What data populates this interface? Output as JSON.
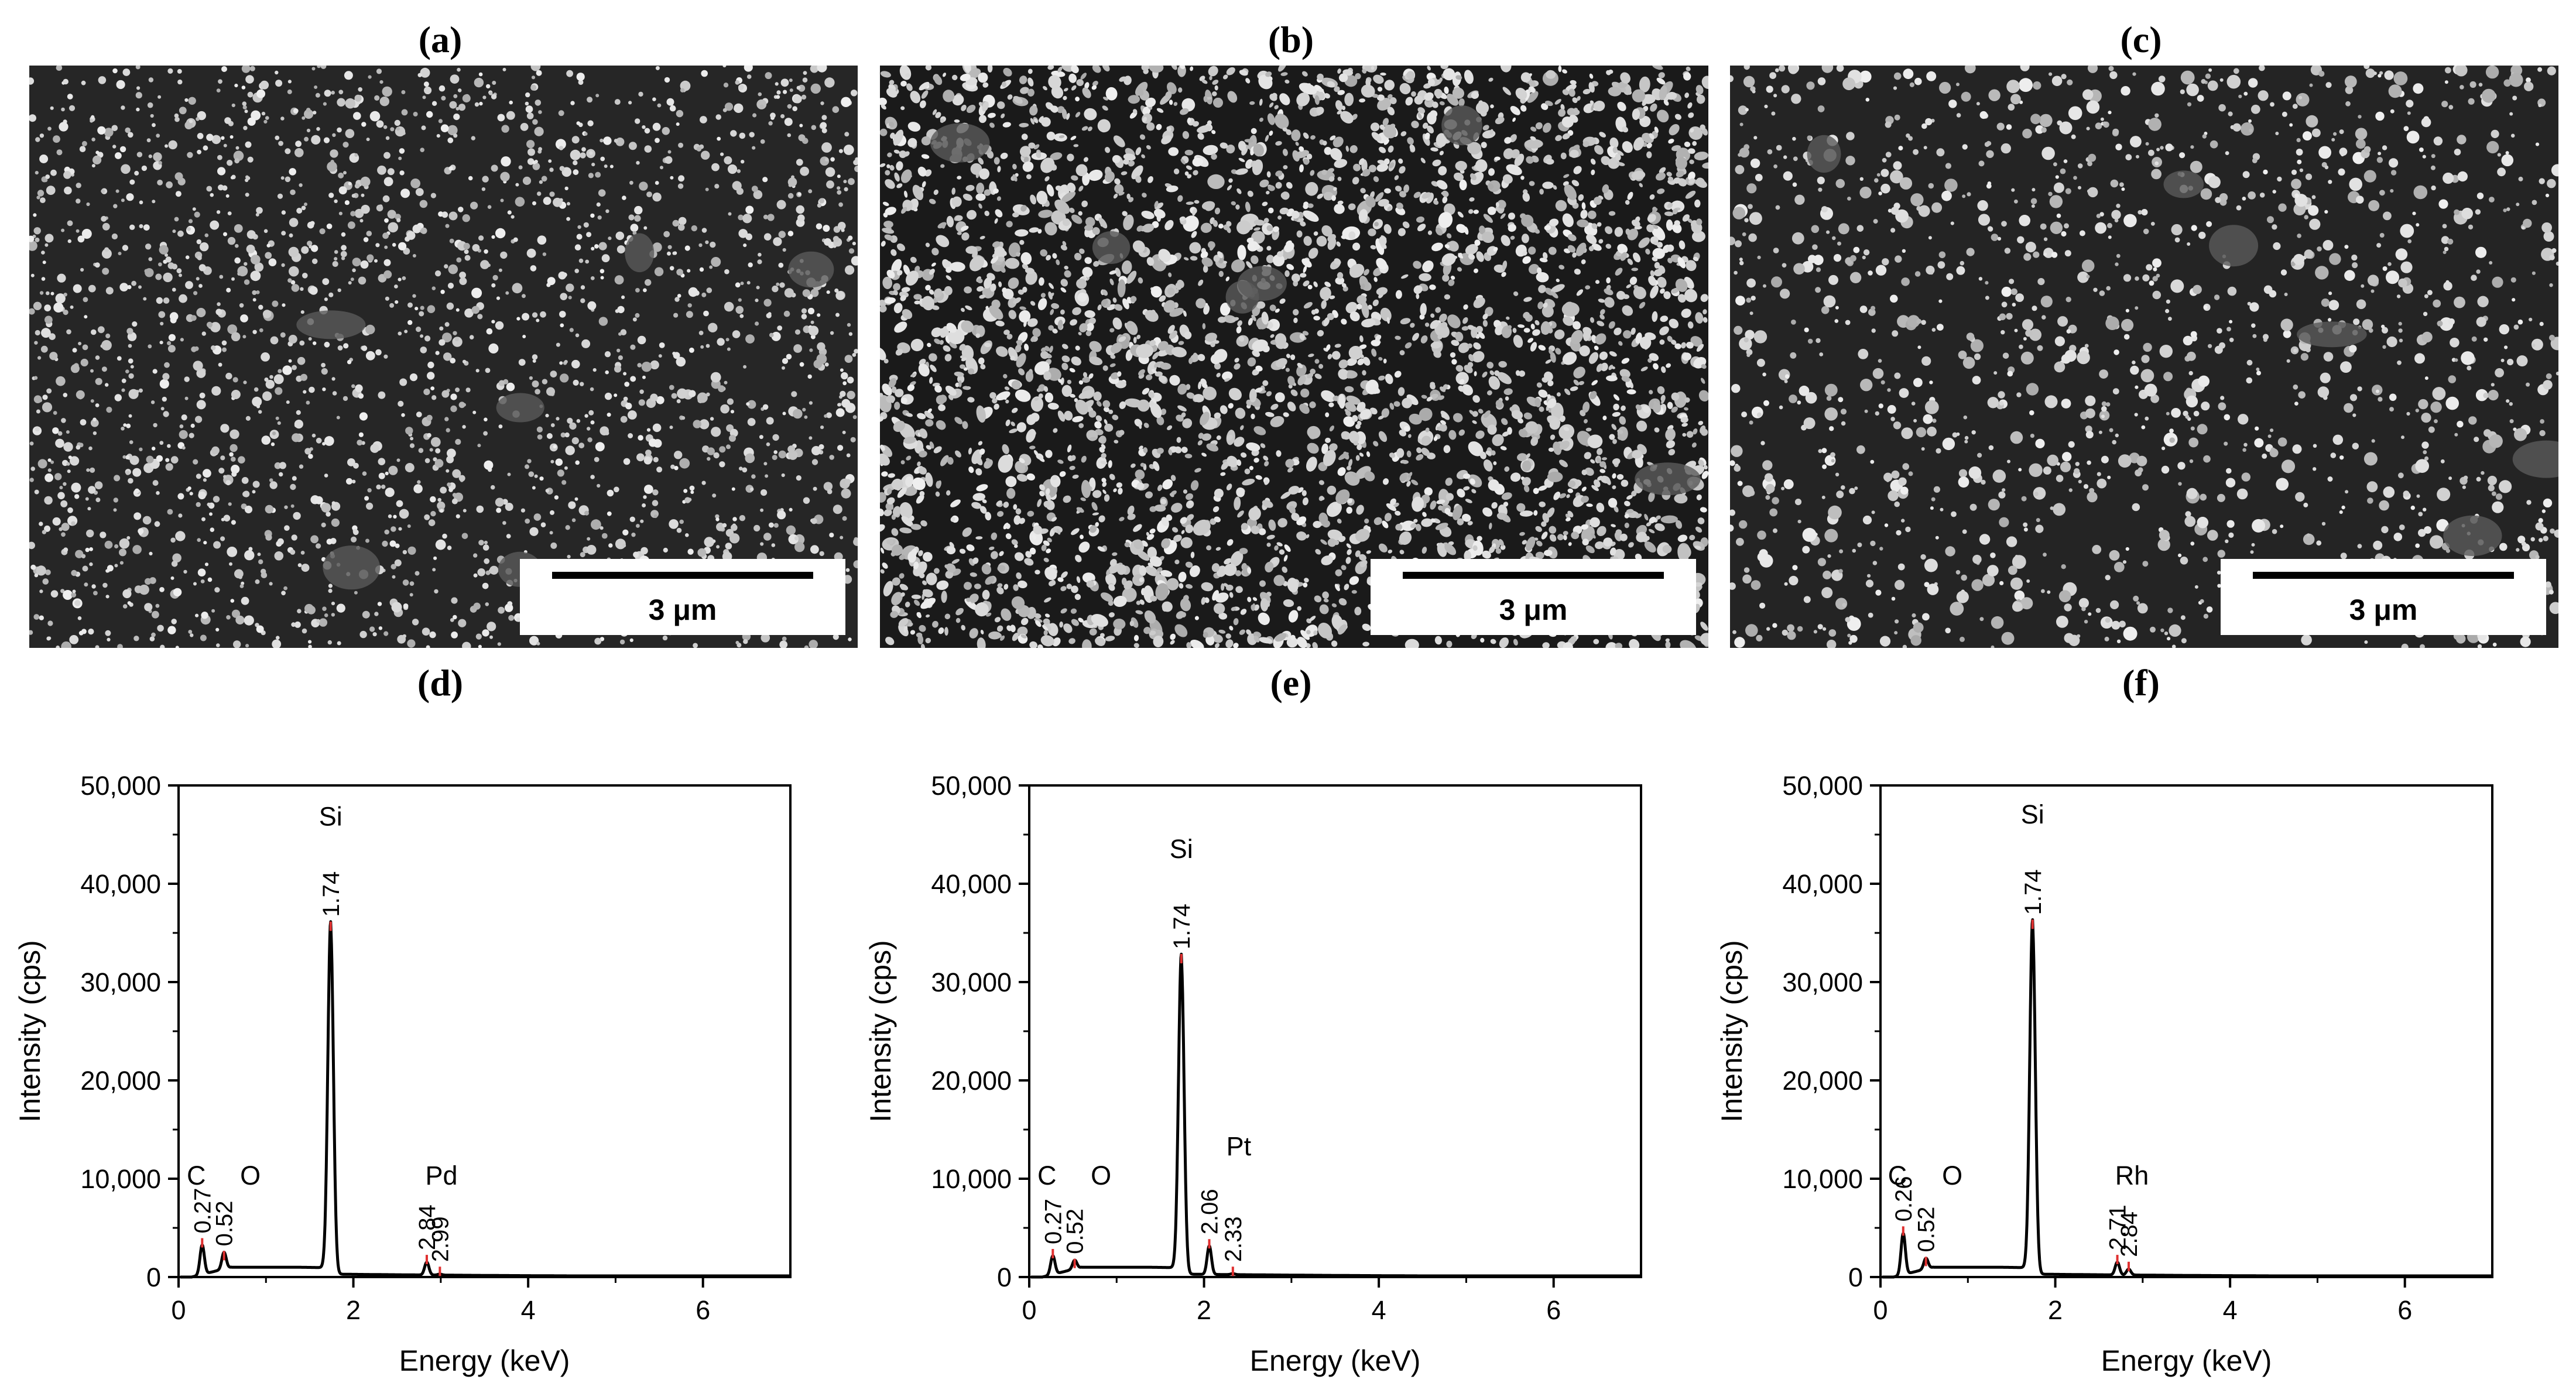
{
  "panels": [
    {
      "id": "a",
      "label": "(a)"
    },
    {
      "id": "b",
      "label": "(b)"
    },
    {
      "id": "c",
      "label": "(c)"
    },
    {
      "id": "d",
      "label": "(d)"
    },
    {
      "id": "e",
      "label": "(e)"
    },
    {
      "id": "f",
      "label": "(f)"
    }
  ],
  "sem_images": [
    {
      "panel": "a",
      "scale_bar_label": "3 μm",
      "tone": "#262626"
    },
    {
      "panel": "b",
      "scale_bar_label": "3 μm",
      "tone": "#1a1a1a"
    },
    {
      "panel": "c",
      "scale_bar_label": "3 μm",
      "tone": "#242424"
    }
  ],
  "chart_data": [
    {
      "panel": "d",
      "type": "line",
      "xlabel": "Energy (keV)",
      "ylabel": "Intensity (cps)",
      "xlim": [
        0,
        7
      ],
      "ylim": [
        0,
        50000
      ],
      "xticks": [
        0,
        2,
        4,
        6
      ],
      "yticks": [
        0,
        10000,
        20000,
        30000,
        40000,
        50000
      ],
      "ytick_labels": [
        "0",
        "10,000",
        "20,000",
        "30,000",
        "40,000",
        "50,000"
      ],
      "grid": false,
      "line_color": "#000000",
      "marker_color": "#e03030",
      "baseline": 1000,
      "peaks": [
        {
          "x": 0.27,
          "y": 3600,
          "label": "0.27"
        },
        {
          "x": 0.52,
          "y": 2300,
          "label": "0.52"
        },
        {
          "x": 1.74,
          "y": 35800,
          "label": "1.74"
        },
        {
          "x": 2.84,
          "y": 1900,
          "label": "2.84"
        },
        {
          "x": 2.99,
          "y": 700,
          "label": "2.99"
        }
      ],
      "elements": [
        {
          "name": "C",
          "near_x": 0.27
        },
        {
          "name": "O",
          "near_x": 0.52
        },
        {
          "name": "Si",
          "near_x": 1.74
        },
        {
          "name": "Pd",
          "near_x": 2.84
        }
      ]
    },
    {
      "panel": "e",
      "type": "line",
      "xlabel": "Energy (keV)",
      "ylabel": "Intensity (cps)",
      "xlim": [
        0,
        7
      ],
      "ylim": [
        0,
        50000
      ],
      "xticks": [
        0,
        2,
        4,
        6
      ],
      "yticks": [
        0,
        10000,
        20000,
        30000,
        40000,
        50000
      ],
      "ytick_labels": [
        "0",
        "10,000",
        "20,000",
        "30,000",
        "40,000",
        "50,000"
      ],
      "grid": false,
      "line_color": "#000000",
      "marker_color": "#e03030",
      "baseline": 1000,
      "peaks": [
        {
          "x": 0.27,
          "y": 2500,
          "label": "0.27"
        },
        {
          "x": 0.52,
          "y": 1500,
          "label": "0.52"
        },
        {
          "x": 1.74,
          "y": 32500,
          "label": "1.74"
        },
        {
          "x": 2.06,
          "y": 3500,
          "label": "2.06"
        },
        {
          "x": 2.33,
          "y": 700,
          "label": "2.33"
        }
      ],
      "elements": [
        {
          "name": "C",
          "near_x": 0.27
        },
        {
          "name": "O",
          "near_x": 0.52
        },
        {
          "name": "Si",
          "near_x": 1.74
        },
        {
          "name": "Pt",
          "near_x": 2.33
        }
      ]
    },
    {
      "panel": "f",
      "type": "line",
      "xlabel": "Energy (keV)",
      "ylabel": "Intensity (cps)",
      "xlim": [
        0,
        7
      ],
      "ylim": [
        0,
        50000
      ],
      "xticks": [
        0,
        2,
        4,
        6
      ],
      "yticks": [
        0,
        10000,
        20000,
        30000,
        40000,
        50000
      ],
      "ytick_labels": [
        "0",
        "10,000",
        "20,000",
        "30,000",
        "40,000",
        "50,000"
      ],
      "grid": false,
      "line_color": "#000000",
      "marker_color": "#e03030",
      "baseline": 1000,
      "peaks": [
        {
          "x": 0.26,
          "y": 4800,
          "label": "0.26"
        },
        {
          "x": 0.52,
          "y": 1700,
          "label": "0.52"
        },
        {
          "x": 1.74,
          "y": 36000,
          "label": "1.74"
        },
        {
          "x": 2.71,
          "y": 1900,
          "label": "2.71"
        },
        {
          "x": 2.84,
          "y": 1200,
          "label": "2.84"
        }
      ],
      "elements": [
        {
          "name": "C",
          "near_x": 0.26
        },
        {
          "name": "O",
          "near_x": 0.52
        },
        {
          "name": "Si",
          "near_x": 1.74
        },
        {
          "name": "Rh",
          "near_x": 2.71
        }
      ]
    }
  ]
}
